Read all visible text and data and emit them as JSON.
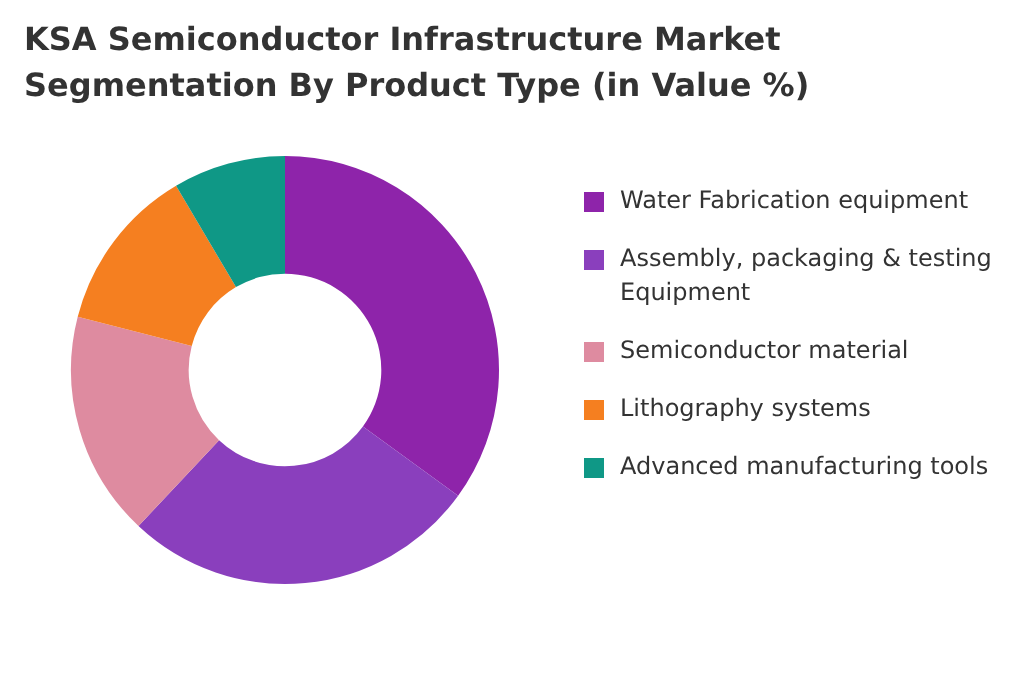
{
  "chart_data": {
    "type": "donut",
    "title": "KSA Semiconductor Infrastructure Market Segmentation By Product Type (in Value %)",
    "categories": [
      "Water Fabrication equipment",
      "Assembly, packaging & testing Equipment",
      "Semiconductor material",
      "Lithography systems",
      "Advanced manufacturing tools"
    ],
    "values": [
      35,
      27,
      17,
      12.5,
      8.5
    ],
    "colors": [
      "#8e24aa",
      "#8a3fbd",
      "#de8ba0",
      "#f57f20",
      "#0f9886"
    ],
    "legend": "right"
  }
}
